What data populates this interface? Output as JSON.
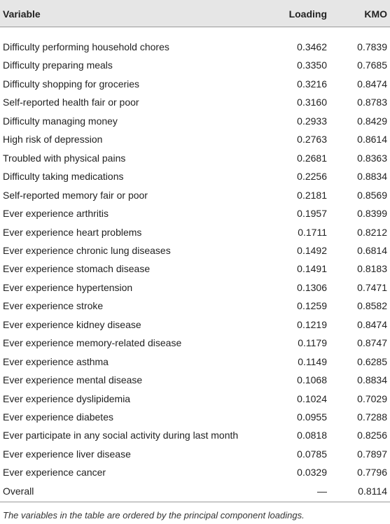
{
  "table": {
    "header": [
      "Variable",
      "Loading",
      "KMO"
    ],
    "rows": [
      [
        "Difficulty performing household chores",
        "0.3462",
        "0.7839"
      ],
      [
        "Difficulty preparing meals",
        "0.3350",
        "0.7685"
      ],
      [
        "Difficulty shopping for groceries",
        "0.3216",
        "0.8474"
      ],
      [
        "Self-reported health fair or poor",
        "0.3160",
        "0.8783"
      ],
      [
        "Difficulty managing money",
        "0.2933",
        "0.8429"
      ],
      [
        "High risk of depression",
        "0.2763",
        "0.8614"
      ],
      [
        "Troubled with physical pains",
        "0.2681",
        "0.8363"
      ],
      [
        "Difficulty taking medications",
        "0.2256",
        "0.8834"
      ],
      [
        "Self-reported memory fair or poor",
        "0.2181",
        "0.8569"
      ],
      [
        "Ever experience arthritis",
        "0.1957",
        "0.8399"
      ],
      [
        "Ever experience heart problems",
        "0.1711",
        "0.8212"
      ],
      [
        "Ever experience chronic lung diseases",
        "0.1492",
        "0.6814"
      ],
      [
        "Ever experience stomach disease",
        "0.1491",
        "0.8183"
      ],
      [
        "Ever experience hypertension",
        "0.1306",
        "0.7471"
      ],
      [
        "Ever experience stroke",
        "0.1259",
        "0.8582"
      ],
      [
        "Ever experience kidney disease",
        "0.1219",
        "0.8474"
      ],
      [
        "Ever experience memory-related disease",
        "0.1179",
        "0.8747"
      ],
      [
        "Ever experience asthma",
        "0.1149",
        "0.6285"
      ],
      [
        "Ever experience mental disease",
        "0.1068",
        "0.8834"
      ],
      [
        "Ever experience dyslipidemia",
        "0.1024",
        "0.7029"
      ],
      [
        "Ever experience diabetes",
        "0.0955",
        "0.7288"
      ],
      [
        "Ever participate in any social activity during last month",
        "0.0818",
        "0.8256"
      ],
      [
        "Ever experience liver disease",
        "0.0785",
        "0.7897"
      ],
      [
        "Ever experience cancer",
        "0.0329",
        "0.7796"
      ],
      [
        "Overall",
        "—",
        "0.8114"
      ]
    ]
  },
  "footnote": "The variables in the table are ordered by the principal component loadings."
}
